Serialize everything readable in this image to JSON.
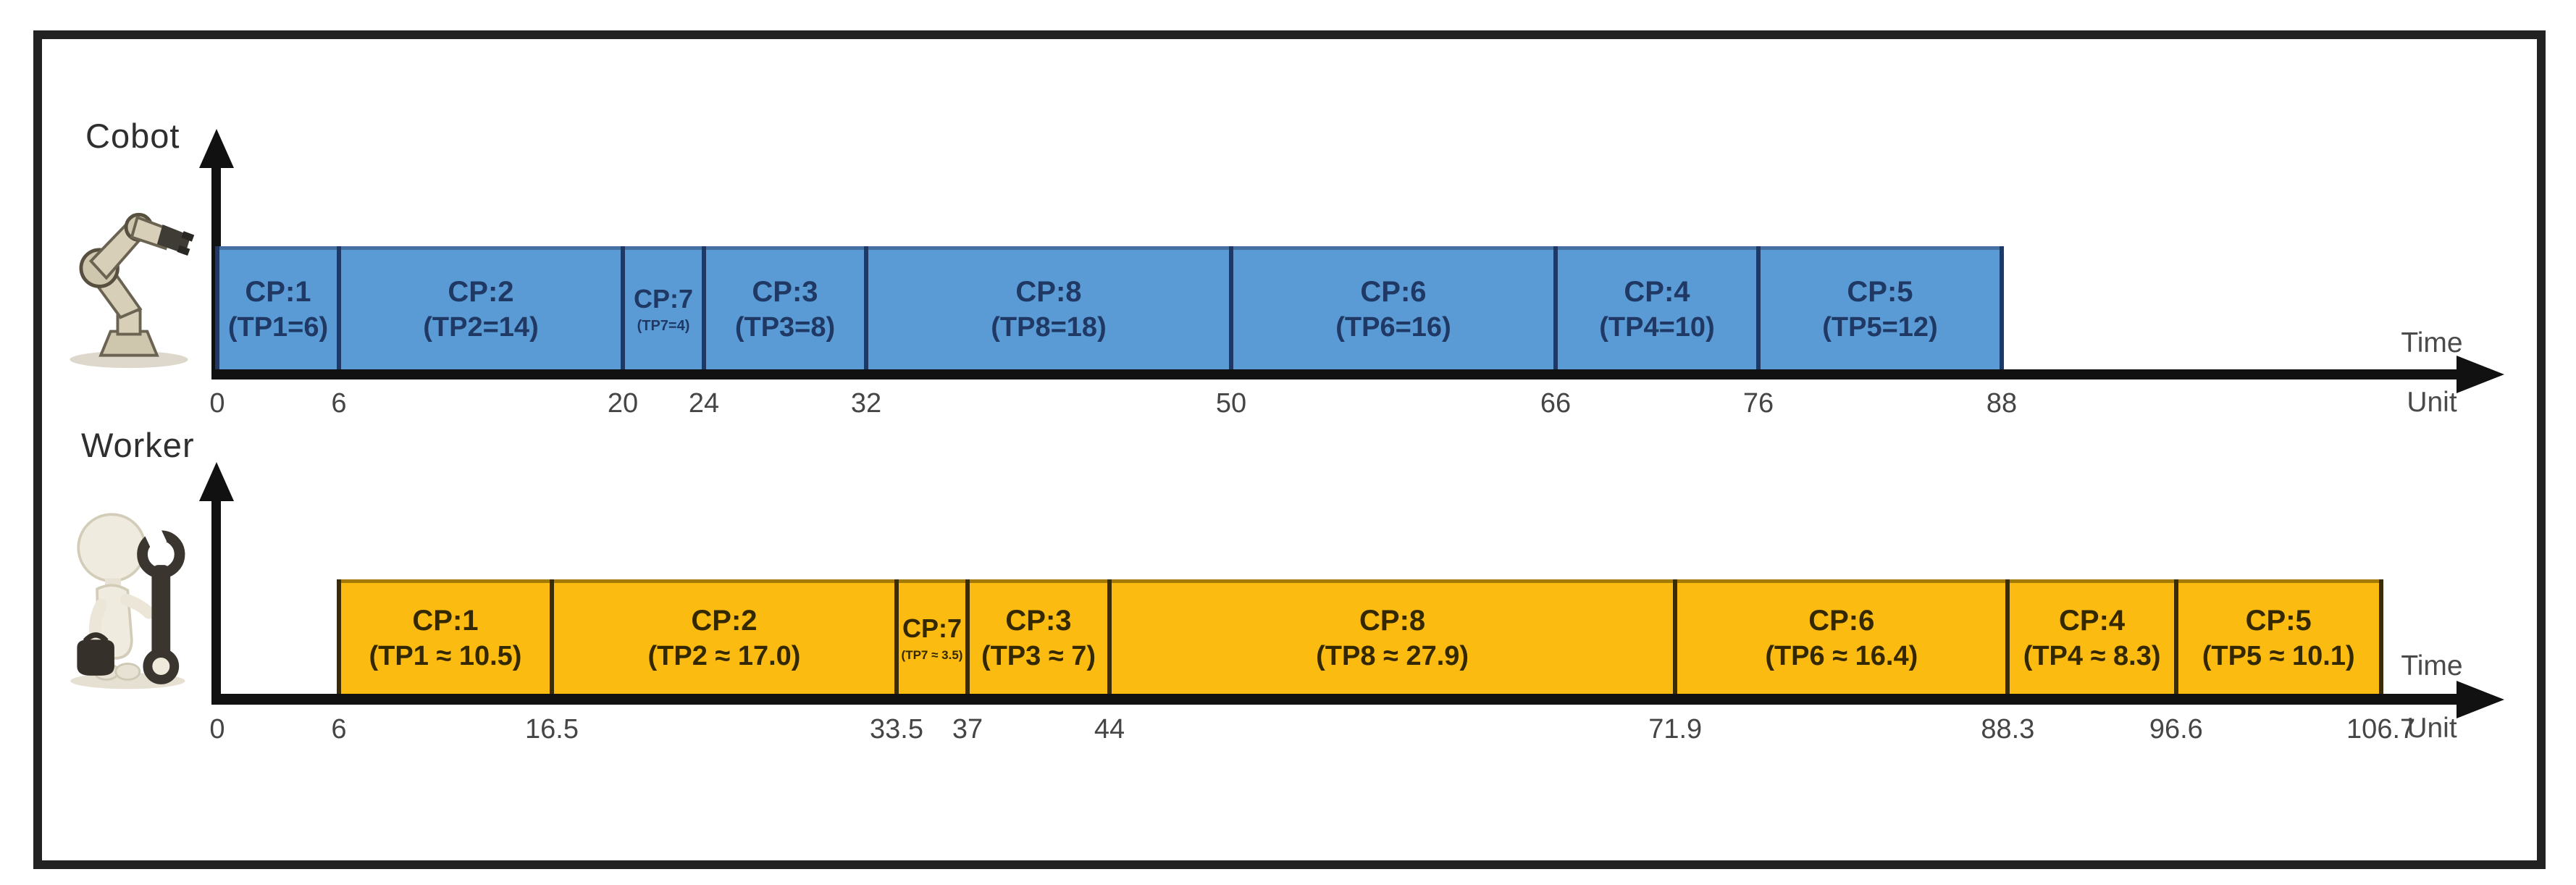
{
  "figure": {
    "background": "#ffffff",
    "frame_color": "#222222"
  },
  "chart_data": [
    {
      "type": "gantt",
      "actor": "Cobot",
      "icon": "robot-arm-icon",
      "bar_fill": "#5B9BD5",
      "bar_separator": "#1F3864",
      "bar_edge_top": "rgba(40,62,100,0.45)",
      "bar_text": "#1F3864",
      "axis_label_line1": "Time",
      "axis_label_line2": "Unit",
      "x_ticks": [
        "0",
        "6",
        "20",
        "24",
        "32",
        "50",
        "66",
        "76",
        "88"
      ],
      "xlim": [
        0,
        112
      ],
      "grid": false,
      "tasks": [
        {
          "name": "CP:1",
          "detail": "(TP1=6)",
          "start": 0,
          "end": 6
        },
        {
          "name": "CP:2",
          "detail": "(TP2=14)",
          "start": 6,
          "end": 20
        },
        {
          "name": "CP:7",
          "detail": "(TP7=4)",
          "start": 20,
          "end": 24
        },
        {
          "name": "CP:3",
          "detail": "(TP3=8)",
          "start": 24,
          "end": 32
        },
        {
          "name": "CP:8",
          "detail": "(TP8=18)",
          "start": 32,
          "end": 50
        },
        {
          "name": "CP:6",
          "detail": "(TP6=16)",
          "start": 50,
          "end": 66
        },
        {
          "name": "CP:4",
          "detail": "(TP4=10)",
          "start": 66,
          "end": 76
        },
        {
          "name": "CP:5",
          "detail": "(TP5=12)",
          "start": 76,
          "end": 88
        }
      ]
    },
    {
      "type": "gantt",
      "actor": "Worker",
      "icon": "worker-wrench-icon",
      "bar_fill": "#FBBB10",
      "bar_separator": "#3A2D06",
      "bar_edge_top": "rgba(80,60,0,0.5)",
      "bar_text": "#332800",
      "axis_label_line1": "Time",
      "axis_label_line2": "Unit",
      "x_ticks": [
        "0",
        "6",
        "16.5",
        "33.5",
        "37",
        "44",
        "71.9",
        "88.3",
        "96.6",
        "106.7"
      ],
      "xlim": [
        0,
        112
      ],
      "grid": false,
      "tasks": [
        {
          "name": "CP:1",
          "detail": "(TP1 ≈ 10.5)",
          "start": 6,
          "end": 16.5
        },
        {
          "name": "CP:2",
          "detail": "(TP2 ≈ 17.0)",
          "start": 16.5,
          "end": 33.5
        },
        {
          "name": "CP:7",
          "detail": "(TP7 ≈ 3.5)",
          "start": 33.5,
          "end": 37
        },
        {
          "name": "CP:3",
          "detail": "(TP3 ≈ 7)",
          "start": 37,
          "end": 44
        },
        {
          "name": "CP:8",
          "detail": "(TP8 ≈ 27.9)",
          "start": 44,
          "end": 71.9
        },
        {
          "name": "CP:6",
          "detail": "(TP6 ≈ 16.4)",
          "start": 71.9,
          "end": 88.3
        },
        {
          "name": "CP:4",
          "detail": "(TP4 ≈ 8.3)",
          "start": 88.3,
          "end": 96.6
        },
        {
          "name": "CP:5",
          "detail": "(TP5 ≈ 10.1)",
          "start": 96.6,
          "end": 106.7
        }
      ]
    }
  ]
}
